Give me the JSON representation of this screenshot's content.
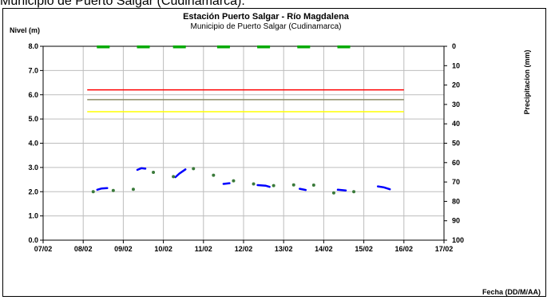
{
  "page_caption": "Municipio de Puerto Salgar (Cudinamarca).",
  "chart_data": {
    "type": "line",
    "title": "Estación Puerto Salgar - Río Magdalena",
    "subtitle": "Municipio de Puerto Salgar (Cudinamarca)",
    "ylabel": "Nivel (m)",
    "y2label": "Precipitacion (mm)",
    "xlabel": "Fecha (DD/M/AA)",
    "ylim": [
      0,
      8
    ],
    "y_ticks": [
      "0.0",
      "1.0",
      "2.0",
      "3.0",
      "4.0",
      "5.0",
      "6.0",
      "7.0",
      "8.0"
    ],
    "y2lim": [
      0,
      100
    ],
    "y2_inverted": true,
    "y2_ticks": [
      "0",
      "10",
      "20",
      "30",
      "40",
      "50",
      "60",
      "70",
      "80",
      "90",
      "100"
    ],
    "x_ticks": [
      "07/02",
      "08/02",
      "09/02",
      "10/02",
      "11/02",
      "12/02",
      "13/02",
      "14/02",
      "15/02",
      "16/02",
      "17/02"
    ],
    "grid": true,
    "thresholds": [
      {
        "value": 6.2,
        "color": "#ff0000"
      },
      {
        "value": 5.8,
        "color": "#8c8c64"
      },
      {
        "value": 5.3,
        "color": "#ffff00"
      }
    ],
    "series": [
      {
        "kind": "line",
        "color": "#0000ff",
        "segments": [
          [
            [
              1.35,
              2.08
            ],
            [
              1.45,
              2.13
            ],
            [
              1.6,
              2.15
            ]
          ],
          [
            [
              2.35,
              2.9
            ],
            [
              2.45,
              2.97
            ],
            [
              2.55,
              2.95
            ]
          ],
          [
            [
              3.3,
              2.6
            ],
            [
              3.4,
              2.75
            ],
            [
              3.55,
              2.92
            ]
          ],
          [
            [
              4.5,
              2.32
            ],
            [
              4.65,
              2.35
            ]
          ],
          [
            [
              5.35,
              2.27
            ],
            [
              5.55,
              2.25
            ],
            [
              5.65,
              2.2
            ]
          ],
          [
            [
              6.4,
              2.12
            ],
            [
              6.55,
              2.07
            ]
          ],
          [
            [
              7.35,
              2.08
            ],
            [
              7.55,
              2.05
            ]
          ],
          [
            [
              8.35,
              2.22
            ],
            [
              8.5,
              2.18
            ],
            [
              8.65,
              2.1
            ]
          ]
        ]
      },
      {
        "kind": "scatter",
        "color": "#3a7a3a",
        "points": [
          [
            1.25,
            2.0
          ],
          [
            1.75,
            2.05
          ],
          [
            2.25,
            2.1
          ],
          [
            2.75,
            2.8
          ],
          [
            3.25,
            2.62
          ],
          [
            3.75,
            2.95
          ],
          [
            4.25,
            2.68
          ],
          [
            4.75,
            2.45
          ],
          [
            5.25,
            2.32
          ],
          [
            5.75,
            2.25
          ],
          [
            6.25,
            2.28
          ],
          [
            6.75,
            2.27
          ],
          [
            7.25,
            1.95
          ],
          [
            7.75,
            2.0
          ]
        ]
      },
      {
        "kind": "bars",
        "axis": "y2",
        "color": "#00aa00",
        "values": [
          [
            1.5,
            1
          ],
          [
            2.5,
            1
          ],
          [
            3.4,
            1
          ],
          [
            4.5,
            1
          ],
          [
            5.5,
            1
          ],
          [
            6.5,
            1
          ],
          [
            7.5,
            1
          ]
        ]
      }
    ]
  }
}
